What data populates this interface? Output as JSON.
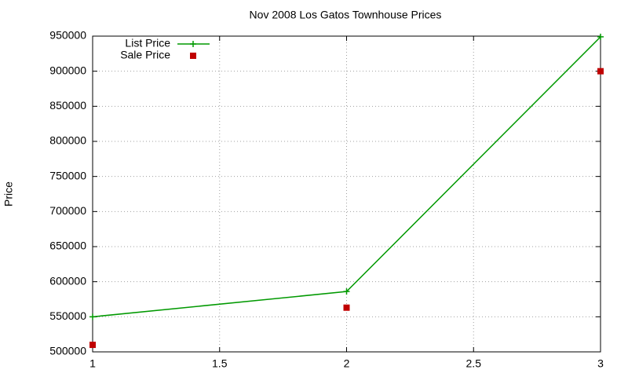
{
  "chart_data": {
    "type": "line",
    "title": "Nov 2008 Los Gatos Townhouse Prices",
    "y_label": "Price",
    "x": [
      1,
      2,
      3
    ],
    "series": [
      {
        "name": "List Price",
        "color": "#009900",
        "marker": "plus",
        "line": true,
        "values": [
          550000,
          586000,
          949000
        ]
      },
      {
        "name": "Sale Price",
        "color": "#c00000",
        "marker": "square",
        "line": false,
        "values": [
          510000,
          563000,
          900000
        ]
      }
    ],
    "xlim": [
      1,
      3
    ],
    "xticks": [
      1,
      1.5,
      2,
      2.5,
      3
    ],
    "ylim": [
      500000,
      950000
    ],
    "yticks": [
      500000,
      550000,
      600000,
      650000,
      700000,
      750000,
      800000,
      850000,
      900000,
      950000
    ],
    "grid": true,
    "legend": "top-left"
  }
}
